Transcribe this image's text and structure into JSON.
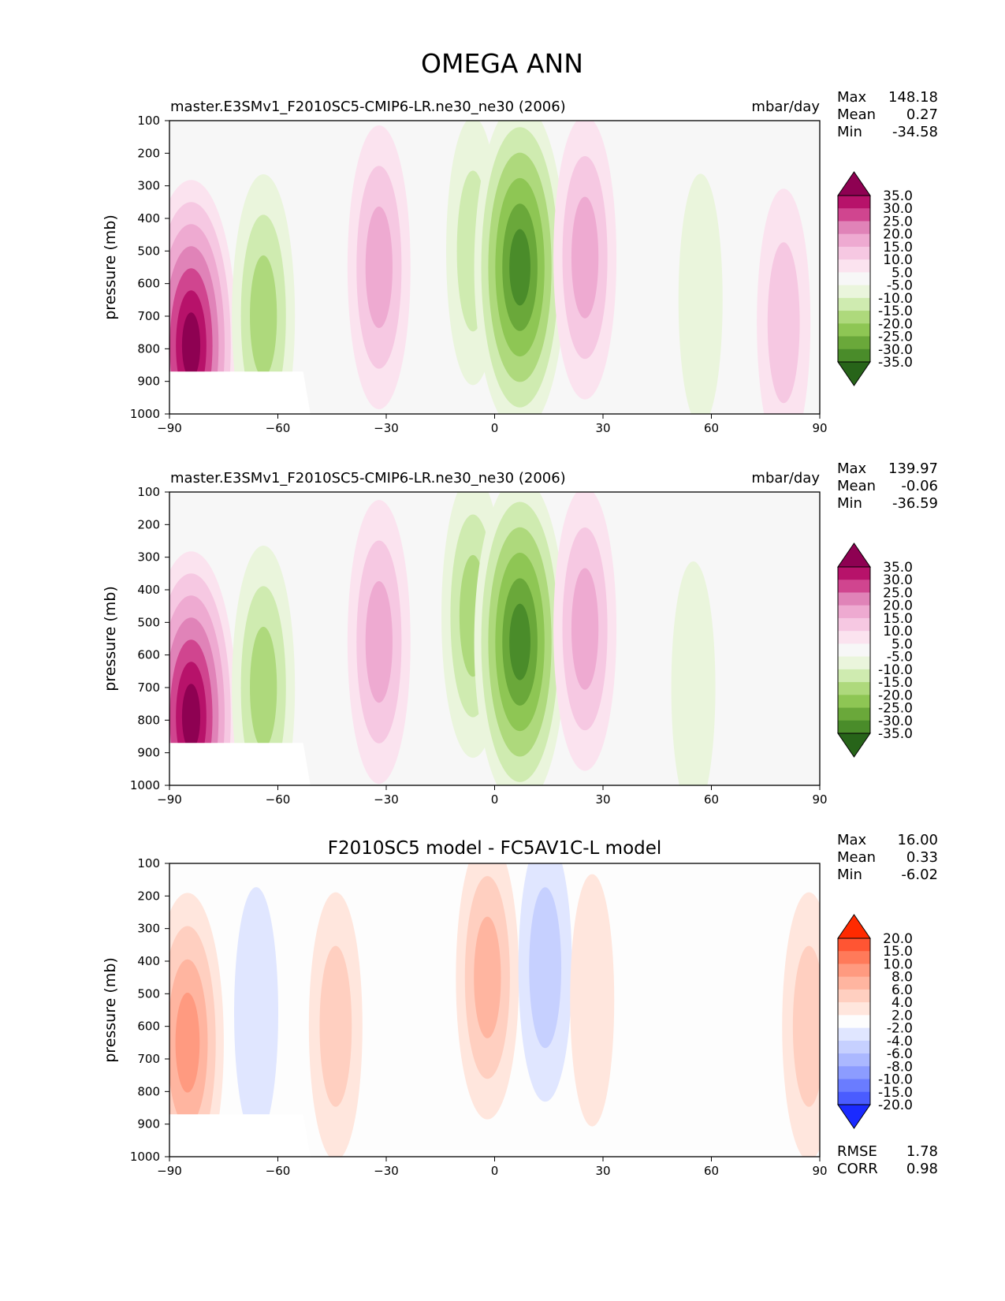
{
  "figure": {
    "title": "OMEGA ANN"
  },
  "chart_data": [
    {
      "type": "heatmap",
      "title": "master.E3SMv1_F2010SC5-CMIP6-LR.ne30_ne30 (2006)",
      "units": "mbar/day",
      "xlabel": "",
      "ylabel": "pressure (mb)",
      "xlim": [
        -90,
        90
      ],
      "ylim": [
        1000,
        100
      ],
      "xticks": [
        "−90",
        "−60",
        "−30",
        "0",
        "30",
        "60",
        "90"
      ],
      "yticks": [
        "100",
        "200",
        "300",
        "400",
        "500",
        "600",
        "700",
        "800",
        "900",
        "1000"
      ],
      "stats": [
        {
          "label": "Max",
          "value": "148.18"
        },
        {
          "label": "Mean",
          "value": "0.27"
        },
        {
          "label": "Min",
          "value": "-34.58"
        }
      ],
      "colorbar": {
        "levels": [
          "35.0",
          "30.0",
          "25.0",
          "20.0",
          "15.0",
          "10.0",
          "5.0",
          "-5.0",
          "-10.0",
          "-15.0",
          "-20.0",
          "-25.0",
          "-30.0",
          "-35.0"
        ],
        "colors": [
          "#8e0152",
          "#b7126a",
          "#d0458f",
          "#e083b8",
          "#eeaad1",
          "#f6c8e2",
          "#fbe3ef",
          "#f7f7f7",
          "#eaf5dc",
          "#cfebb0",
          "#aed97c",
          "#8ec654",
          "#6aa83a",
          "#4a8c2a",
          "#276419"
        ]
      },
      "features": [
        {
          "lat": -84,
          "p": 790,
          "value": 35
        },
        {
          "lat": -64,
          "p": 700,
          "value": -20
        },
        {
          "lat": -32,
          "p": 550,
          "value": 15
        },
        {
          "lat": -6,
          "p": 500,
          "value": -15
        },
        {
          "lat": 7,
          "p": 550,
          "value": -35
        },
        {
          "lat": 25,
          "p": 520,
          "value": 15
        },
        {
          "lat": 57,
          "p": 650,
          "value": -10
        },
        {
          "lat": 80,
          "p": 720,
          "value": 10
        }
      ]
    },
    {
      "type": "heatmap",
      "title": "master.E3SMv1_F2010SC5-CMIP6-LR.ne30_ne30 (2006)",
      "units": "mbar/day",
      "xlabel": "",
      "ylabel": "pressure (mb)",
      "xlim": [
        -90,
        90
      ],
      "ylim": [
        1000,
        100
      ],
      "xticks": [
        "−90",
        "−60",
        "−30",
        "0",
        "30",
        "60",
        "90"
      ],
      "yticks": [
        "100",
        "200",
        "300",
        "400",
        "500",
        "600",
        "700",
        "800",
        "900",
        "1000"
      ],
      "stats": [
        {
          "label": "Max",
          "value": "139.97"
        },
        {
          "label": "Mean",
          "value": "-0.06"
        },
        {
          "label": "Min",
          "value": "-36.59"
        }
      ],
      "colorbar": {
        "levels": [
          "35.0",
          "30.0",
          "25.0",
          "20.0",
          "15.0",
          "10.0",
          "5.0",
          "-5.0",
          "-10.0",
          "-15.0",
          "-20.0",
          "-25.0",
          "-30.0",
          "-35.0"
        ],
        "colors": [
          "#8e0152",
          "#b7126a",
          "#d0458f",
          "#e083b8",
          "#eeaad1",
          "#f6c8e2",
          "#fbe3ef",
          "#f7f7f7",
          "#eaf5dc",
          "#cfebb0",
          "#aed97c",
          "#8ec654",
          "#6aa83a",
          "#4a8c2a",
          "#276419"
        ]
      },
      "features": [
        {
          "lat": -84,
          "p": 790,
          "value": 35
        },
        {
          "lat": -64,
          "p": 700,
          "value": -20
        },
        {
          "lat": -32,
          "p": 560,
          "value": 15
        },
        {
          "lat": -6,
          "p": 480,
          "value": -20
        },
        {
          "lat": 7,
          "p": 560,
          "value": -35
        },
        {
          "lat": 25,
          "p": 520,
          "value": 15
        },
        {
          "lat": 55,
          "p": 700,
          "value": -10
        }
      ]
    },
    {
      "type": "heatmap",
      "title": "F2010SC5 model - FC5AV1C-L model",
      "units": "",
      "xlabel": "",
      "ylabel": "pressure (mb)",
      "xlim": [
        -90,
        90
      ],
      "ylim": [
        1000,
        100
      ],
      "xticks": [
        "−90",
        "−60",
        "−30",
        "0",
        "30",
        "60",
        "90"
      ],
      "yticks": [
        "100",
        "200",
        "300",
        "400",
        "500",
        "600",
        "700",
        "800",
        "900",
        "1000"
      ],
      "stats": [
        {
          "label": "Max",
          "value": "16.00"
        },
        {
          "label": "Mean",
          "value": "0.33"
        },
        {
          "label": "Min",
          "value": "-6.02"
        }
      ],
      "metrics": [
        {
          "label": "RMSE",
          "value": "1.78"
        },
        {
          "label": "CORR",
          "value": "0.98"
        }
      ],
      "colorbar": {
        "levels": [
          "20.0",
          "15.0",
          "10.0",
          "8.0",
          "6.0",
          "4.0",
          "2.0",
          "-2.0",
          "-4.0",
          "-6.0",
          "-8.0",
          "-10.0",
          "-15.0",
          "-20.0"
        ],
        "colors": [
          "#ff2a00",
          "#ff5533",
          "#ff7a5a",
          "#ff9a80",
          "#ffb5a0",
          "#ffcfc0",
          "#ffe6dd",
          "#fdfdfd",
          "#e0e6ff",
          "#c6d0ff",
          "#abb8ff",
          "#8c9cff",
          "#6a7cff",
          "#4a5cff",
          "#1a2aff"
        ]
      },
      "features": [
        {
          "lat": -85,
          "p": 650,
          "value": 8
        },
        {
          "lat": -66,
          "p": 560,
          "value": -4
        },
        {
          "lat": -44,
          "p": 600,
          "value": 4
        },
        {
          "lat": -2,
          "p": 450,
          "value": 6
        },
        {
          "lat": 14,
          "p": 420,
          "value": -6
        },
        {
          "lat": 27,
          "p": 520,
          "value": 2
        },
        {
          "lat": 38,
          "p": 600,
          "value": -2
        },
        {
          "lat": 87,
          "p": 600,
          "value": 4
        }
      ]
    }
  ]
}
